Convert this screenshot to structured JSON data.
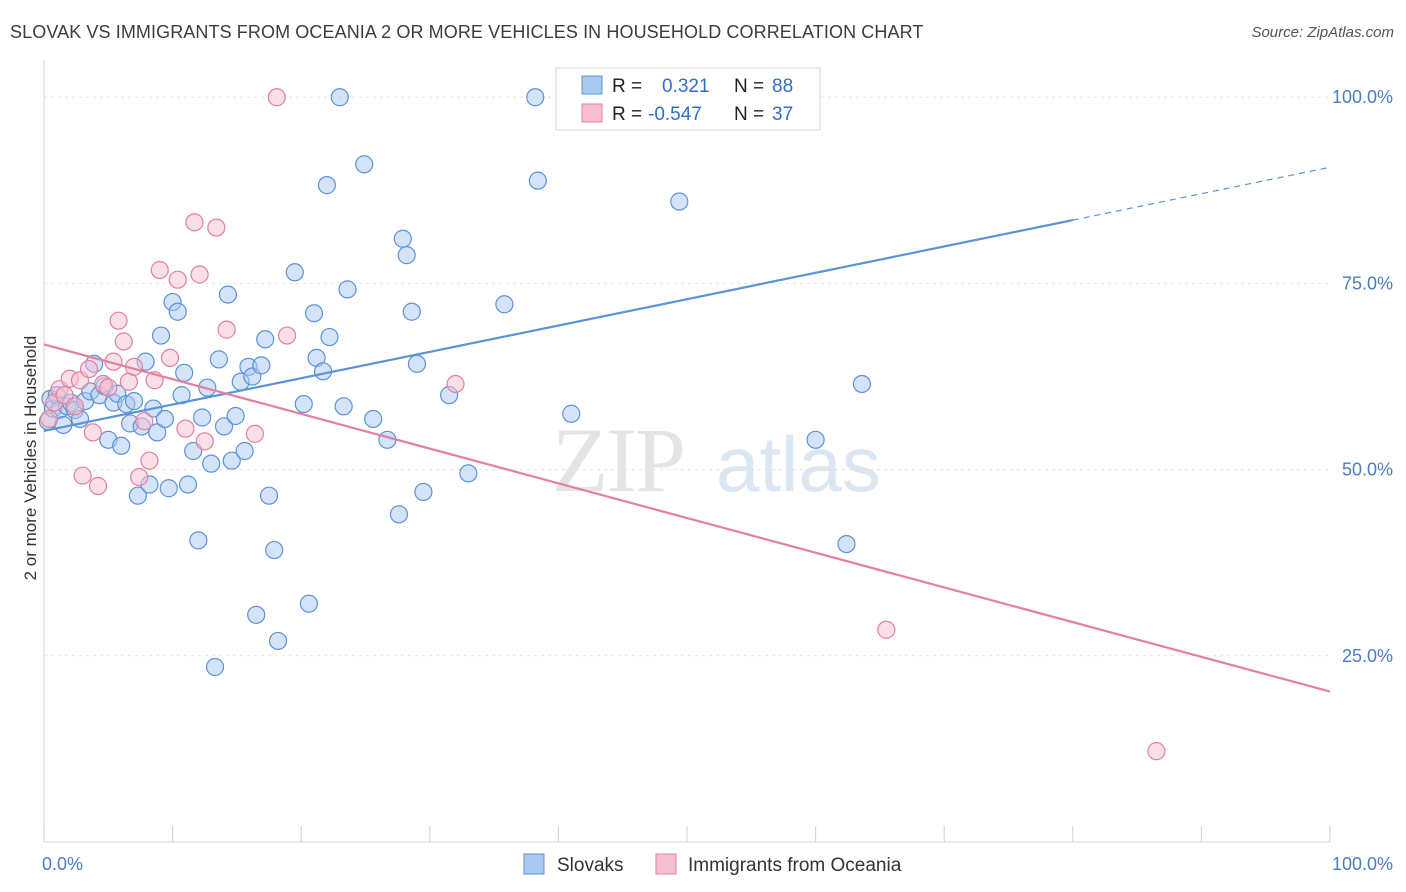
{
  "title": "SLOVAK VS IMMIGRANTS FROM OCEANIA 2 OR MORE VEHICLES IN HOUSEHOLD CORRELATION CHART",
  "source": "Source: ZipAtlas.com",
  "watermark": {
    "zip": "ZIP",
    "atlas": "atlas"
  },
  "chart_data": {
    "type": "scatter",
    "title": "SLOVAK VS IMMIGRANTS FROM OCEANIA 2 OR MORE VEHICLES IN HOUSEHOLD CORRELATION CHART",
    "xlabel": "",
    "ylabel": "2 or more Vehicles in Household",
    "xlim": [
      0,
      100
    ],
    "ylim": [
      0,
      105
    ],
    "x_tick_labels": [
      "0.0%",
      "100.0%"
    ],
    "y_ticks": [
      25,
      50,
      75,
      100
    ],
    "y_tick_labels": [
      "25.0%",
      "50.0%",
      "75.0%",
      "100.0%"
    ],
    "grid": true,
    "legend_position": "top-center",
    "series": [
      {
        "name": "Slovaks",
        "color": "#5b93d8",
        "fill": "#a9c8ef",
        "R": "0.321",
        "N": "88",
        "trend": {
          "x0": 0,
          "y0": 55.2,
          "x1": 80,
          "y1": 83.5,
          "dash_to_x": 100,
          "dash_to_y": 90.6
        },
        "points": [
          [
            0.3,
            56.5
          ],
          [
            0.5,
            59.5
          ],
          [
            0.7,
            58.2
          ],
          [
            1.0,
            60.0
          ],
          [
            1.2,
            58.0
          ],
          [
            1.5,
            56.0
          ],
          [
            1.8,
            58.5
          ],
          [
            2.1,
            59.0
          ],
          [
            2.4,
            58.0
          ],
          [
            2.8,
            56.8
          ],
          [
            3.2,
            59.2
          ],
          [
            3.6,
            60.5
          ],
          [
            3.9,
            64.2
          ],
          [
            4.3,
            60.0
          ],
          [
            4.7,
            61.2
          ],
          [
            5.0,
            54.0
          ],
          [
            5.4,
            59.0
          ],
          [
            5.7,
            60.2
          ],
          [
            6.0,
            53.2
          ],
          [
            6.4,
            58.8
          ],
          [
            6.7,
            56.2
          ],
          [
            7.0,
            59.2
          ],
          [
            7.3,
            46.5
          ],
          [
            7.6,
            55.8
          ],
          [
            7.9,
            64.5
          ],
          [
            8.2,
            48.0
          ],
          [
            8.5,
            58.2
          ],
          [
            8.8,
            55.0
          ],
          [
            9.1,
            68.0
          ],
          [
            9.4,
            56.8
          ],
          [
            9.7,
            47.5
          ],
          [
            10.0,
            72.5
          ],
          [
            10.4,
            71.2
          ],
          [
            10.7,
            60.0
          ],
          [
            10.9,
            63.0
          ],
          [
            11.2,
            48.0
          ],
          [
            11.6,
            52.5
          ],
          [
            12.0,
            40.5
          ],
          [
            12.3,
            57.0
          ],
          [
            12.7,
            61.0
          ],
          [
            13.0,
            50.8
          ],
          [
            13.3,
            23.5
          ],
          [
            13.6,
            64.8
          ],
          [
            14.0,
            55.8
          ],
          [
            14.3,
            73.5
          ],
          [
            14.6,
            51.2
          ],
          [
            14.9,
            57.2
          ],
          [
            15.3,
            61.8
          ],
          [
            15.6,
            52.5
          ],
          [
            15.9,
            63.8
          ],
          [
            16.2,
            62.5
          ],
          [
            16.5,
            30.5
          ],
          [
            16.9,
            64.0
          ],
          [
            17.2,
            67.5
          ],
          [
            17.5,
            46.5
          ],
          [
            17.9,
            39.2
          ],
          [
            18.2,
            27.0
          ],
          [
            19.5,
            76.5
          ],
          [
            20.2,
            58.8
          ],
          [
            20.6,
            32.0
          ],
          [
            21.0,
            71.0
          ],
          [
            21.2,
            65.0
          ],
          [
            21.7,
            63.2
          ],
          [
            22.0,
            88.2
          ],
          [
            22.2,
            67.8
          ],
          [
            23.0,
            100.0
          ],
          [
            23.3,
            58.5
          ],
          [
            23.6,
            74.2
          ],
          [
            24.9,
            91.0
          ],
          [
            25.6,
            56.8
          ],
          [
            26.7,
            54.0
          ],
          [
            27.6,
            44.0
          ],
          [
            27.9,
            81.0
          ],
          [
            28.2,
            78.8
          ],
          [
            28.6,
            71.2
          ],
          [
            29.0,
            64.2
          ],
          [
            29.5,
            47.0
          ],
          [
            31.5,
            60.0
          ],
          [
            35.8,
            72.2
          ],
          [
            38.2,
            100.0
          ],
          [
            38.4,
            88.8
          ],
          [
            49.4,
            86.0
          ],
          [
            60.0,
            54.0
          ],
          [
            62.4,
            40.0
          ],
          [
            63.6,
            61.5
          ],
          [
            48.0,
            100.0
          ],
          [
            41.0,
            57.5
          ],
          [
            33.0,
            49.5
          ]
        ]
      },
      {
        "name": "Immigrants from Oceania",
        "color": "#e37fa1",
        "fill": "#f5bfd0",
        "R": "-0.547",
        "N": "37",
        "trend": {
          "x0": 0,
          "y0": 66.8,
          "x1": 100,
          "y1": 20.2
        },
        "points": [
          [
            0.4,
            56.8
          ],
          [
            0.8,
            59.0
          ],
          [
            1.2,
            60.8
          ],
          [
            1.6,
            60.0
          ],
          [
            2.0,
            62.2
          ],
          [
            2.4,
            58.5
          ],
          [
            2.8,
            62.0
          ],
          [
            3.0,
            49.2
          ],
          [
            3.5,
            63.5
          ],
          [
            3.8,
            55.0
          ],
          [
            4.2,
            47.8
          ],
          [
            4.6,
            61.5
          ],
          [
            5.0,
            61.0
          ],
          [
            5.4,
            64.5
          ],
          [
            5.8,
            70.0
          ],
          [
            6.2,
            67.2
          ],
          [
            6.6,
            61.8
          ],
          [
            7.0,
            63.8
          ],
          [
            7.4,
            49.0
          ],
          [
            7.8,
            56.5
          ],
          [
            8.2,
            51.2
          ],
          [
            8.6,
            62.0
          ],
          [
            9.0,
            76.8
          ],
          [
            9.8,
            65.0
          ],
          [
            10.4,
            75.5
          ],
          [
            11.0,
            55.5
          ],
          [
            11.7,
            83.2
          ],
          [
            12.1,
            76.2
          ],
          [
            12.5,
            53.8
          ],
          [
            13.4,
            82.5
          ],
          [
            14.2,
            68.8
          ],
          [
            16.4,
            54.8
          ],
          [
            18.1,
            100.0
          ],
          [
            18.9,
            68.0
          ],
          [
            32.0,
            61.5
          ],
          [
            65.5,
            28.5
          ],
          [
            86.5,
            12.2
          ]
        ]
      }
    ]
  }
}
